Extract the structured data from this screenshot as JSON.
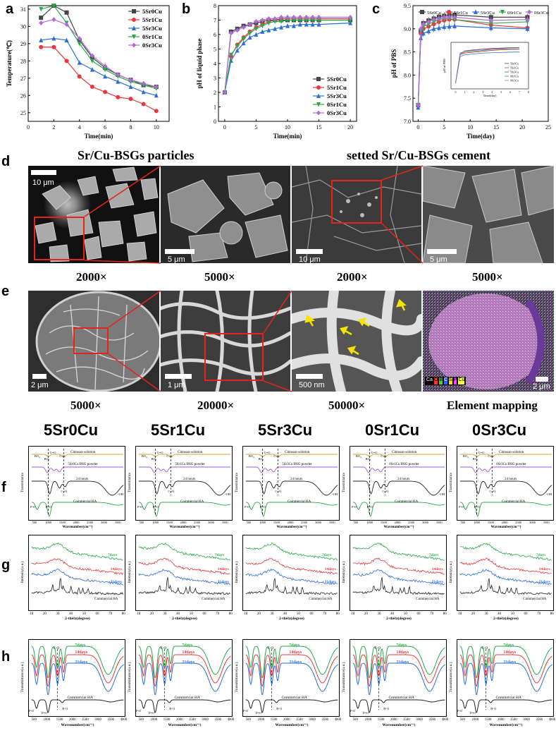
{
  "panel_letters": {
    "a": "a",
    "b": "b",
    "c": "c",
    "d": "d",
    "e": "e",
    "f": "f",
    "g": "g",
    "h": "h"
  },
  "row_d": {
    "title_left": "Sr/Cu-BSGs particles",
    "title_right": "setted Sr/Cu-BSGs cement",
    "mags": [
      "2000×",
      "5000×",
      "2000×",
      "5000×"
    ],
    "scales": [
      "10 μm",
      "5 μm",
      "10 μm",
      "5 μm"
    ]
  },
  "row_e": {
    "mags": [
      "5000×",
      "20000×",
      "50000×",
      "Element mapping"
    ],
    "scales": [
      "2 μm",
      "1 μm",
      "500 nm",
      "2 μm"
    ],
    "mapping_legend": [
      "Ca",
      "O",
      "B",
      "C",
      "S",
      "P",
      "Cu"
    ],
    "mapping_legend_colors": [
      "#ffffff",
      "#ff3030",
      "#30e030",
      "#3060ff",
      "#ffe000",
      "#ff40ff",
      "#ffff40"
    ]
  },
  "sample_names": [
    "5Sr0Cu",
    "5Sr1Cu",
    "5Sr3Cu",
    "0Sr1Cu",
    "0Sr3Cu"
  ],
  "colors": {
    "5Sr0Cu": "#444444",
    "5Sr1Cu": "#e8383d",
    "5Sr3Cu": "#2b6fd6",
    "0Sr1Cu": "#2aa84a",
    "0Sr3Cu": "#b36ad6",
    "mappingBg": "#2a2238"
  },
  "chart_data": [
    {
      "type": "line",
      "panel": "a",
      "xlabel": "Time(min)",
      "ylabel": "Temperature(℃)",
      "xlim": [
        0,
        11
      ],
      "ylim": [
        24.5,
        31.2
      ],
      "xticks": [
        0,
        2,
        4,
        6,
        8,
        10
      ],
      "yticks": [
        25,
        26,
        27,
        28,
        29,
        30,
        31
      ],
      "legend": "top-right",
      "x": [
        1,
        2,
        3,
        4,
        5,
        6,
        7,
        8,
        9,
        10
      ],
      "series": [
        {
          "name": "5Sr0Cu",
          "marker": "square",
          "values": [
            30.5,
            31.2,
            30.8,
            29.2,
            28.2,
            27.6,
            27.2,
            26.9,
            26.6,
            26.5
          ]
        },
        {
          "name": "5Sr1Cu",
          "marker": "circle",
          "values": [
            28.8,
            28.8,
            28.0,
            27.1,
            26.5,
            26.2,
            25.9,
            25.8,
            25.5,
            25.1
          ]
        },
        {
          "name": "5Sr3Cu",
          "marker": "triangle",
          "values": [
            29.2,
            29.3,
            29.2,
            27.9,
            27.5,
            27.1,
            26.8,
            26.5,
            26.2,
            26.0
          ]
        },
        {
          "name": "0Sr1Cu",
          "marker": "tri-down",
          "values": [
            31.0,
            31.2,
            30.2,
            29.0,
            28.0,
            27.5,
            27.1,
            26.8,
            26.6,
            26.4
          ]
        },
        {
          "name": "0Sr3Cu",
          "marker": "diamond",
          "values": [
            30.2,
            30.4,
            30.1,
            29.3,
            28.3,
            27.7,
            27.2,
            26.9,
            26.7,
            26.5
          ]
        }
      ]
    },
    {
      "type": "line",
      "panel": "b",
      "xlabel": "Time(min)",
      "ylabel": "pH of liquid phase",
      "xlim": [
        -1,
        21
      ],
      "ylim": [
        0,
        8
      ],
      "xticks": [
        0,
        5,
        10,
        15,
        20
      ],
      "yticks": [
        0,
        1,
        2,
        3,
        4,
        5,
        6,
        7,
        8
      ],
      "legend": "bottom-right",
      "x": [
        0,
        1,
        2,
        3,
        4,
        5,
        6,
        7,
        8,
        9,
        10,
        11,
        12,
        13,
        14,
        15,
        20
      ],
      "series": [
        {
          "name": "5Sr0Cu",
          "marker": "square",
          "values": [
            2.0,
            6.2,
            6.4,
            6.6,
            6.7,
            6.8,
            6.9,
            7.0,
            7.0,
            7.0,
            7.0,
            7.0,
            7.0,
            7.0,
            7.0,
            7.0,
            7.0
          ]
        },
        {
          "name": "5Sr1Cu",
          "marker": "circle",
          "values": [
            2.0,
            4.5,
            5.3,
            5.8,
            6.2,
            6.5,
            6.7,
            6.9,
            7.0,
            7.1,
            7.1,
            7.1,
            7.1,
            7.1,
            7.1,
            7.1,
            7.1
          ]
        },
        {
          "name": "5Sr3Cu",
          "marker": "triangle",
          "values": [
            2.0,
            4.2,
            4.9,
            5.4,
            5.8,
            6.0,
            6.2,
            6.3,
            6.4,
            6.5,
            6.6,
            6.6,
            6.7,
            6.7,
            6.7,
            6.7,
            6.8
          ]
        },
        {
          "name": "0Sr1Cu",
          "marker": "tri-down",
          "values": [
            2.0,
            4.6,
            5.2,
            5.7,
            6.1,
            6.4,
            6.6,
            6.8,
            6.9,
            6.9,
            7.0,
            7.0,
            7.0,
            7.0,
            7.0,
            7.0,
            7.0
          ]
        },
        {
          "name": "0Sr3Cu",
          "marker": "diamond",
          "values": [
            2.0,
            6.1,
            6.3,
            6.5,
            6.7,
            6.9,
            7.0,
            7.1,
            7.1,
            7.2,
            7.2,
            7.2,
            7.2,
            7.2,
            7.2,
            7.2,
            7.2
          ]
        }
      ]
    },
    {
      "type": "line",
      "panel": "c",
      "xlabel": "Time(day)",
      "ylabel": "pH of PBS",
      "xlim": [
        -1,
        25
      ],
      "ylim": [
        7.0,
        9.5
      ],
      "xticks": [
        0,
        5,
        10,
        15,
        20,
        25
      ],
      "yticks": [
        7.0,
        7.5,
        8.0,
        8.5,
        9.0,
        9.5
      ],
      "legend": "top",
      "x": [
        0,
        0.5,
        1,
        2,
        3,
        4,
        5,
        6,
        7,
        14,
        21
      ],
      "series": [
        {
          "name": "5Sr0Cu",
          "marker": "square",
          "values": [
            7.35,
            8.95,
            9.12,
            9.18,
            9.22,
            9.26,
            9.28,
            9.3,
            9.3,
            9.25,
            9.25
          ]
        },
        {
          "name": "5Sr1Cu",
          "marker": "circle",
          "values": [
            7.35,
            8.9,
            9.0,
            9.05,
            9.1,
            9.15,
            9.18,
            9.2,
            9.2,
            9.08,
            9.02
          ]
        },
        {
          "name": "5Sr3Cu",
          "marker": "triangle",
          "values": [
            7.3,
            8.8,
            8.9,
            8.95,
            9.0,
            9.02,
            9.04,
            9.05,
            9.06,
            9.02,
            9.0
          ]
        },
        {
          "name": "0Sr1Cu",
          "marker": "tri-down",
          "values": [
            7.35,
            8.95,
            9.05,
            9.1,
            9.15,
            9.2,
            9.22,
            9.22,
            9.2,
            9.12,
            9.15
          ]
        },
        {
          "name": "0Sr3Cu",
          "marker": "diamond",
          "values": [
            7.35,
            9.0,
            9.1,
            9.15,
            9.2,
            9.22,
            9.25,
            9.25,
            9.25,
            9.18,
            9.2
          ]
        }
      ]
    }
  ],
  "row_f": {
    "xlabel": "Wavenumber(cm⁻¹)",
    "ylabel": "Transmittance",
    "xticks": [
      "500",
      "1000",
      "1500",
      "2000",
      "2500",
      "3000",
      "3500"
    ],
    "labels": {
      "chitosan": "Chitosan solution",
      "powder_suffix": " BSG powder",
      "h24": "24 hours",
      "ha": "Commercial HA",
      "bo4": "BO₄",
      "bo3": "BO₃",
      "co": "C-O",
      "co2": "C=O",
      "po": "P-O",
      "po2": "P=O",
      "oh": "-OH"
    },
    "powder_names": [
      "5Sr0Cu",
      "5Sr1Cu",
      "5Sr3Cu",
      "0Sr1Cu",
      "0Sr3Cu"
    ]
  },
  "row_g": {
    "xlabel": "2-theta(degree)",
    "ylabel": "Intensity(a.u.)",
    "xticks": [
      "10",
      "20",
      "30",
      "40",
      "50",
      "60",
      "70",
      "80"
    ],
    "labels": {
      "d7": "7days",
      "d14": "14days",
      "d21": "21days",
      "ha": "Commercial HA"
    }
  },
  "row_h": {
    "xlabel": "Wavenumber(cm⁻¹)",
    "ylabel": "Transmittance(a.u.)",
    "xticks": [
      "500",
      "1000",
      "1500",
      "2000",
      "2500",
      "3000",
      "3500",
      "4000"
    ],
    "labels": {
      "d7": "7days",
      "d14": "14days",
      "d21": "21days",
      "ha": "Commercial HA",
      "co": "C-O",
      "po": "P-O",
      "po2": "P=O",
      "ho": "H-O"
    }
  }
}
